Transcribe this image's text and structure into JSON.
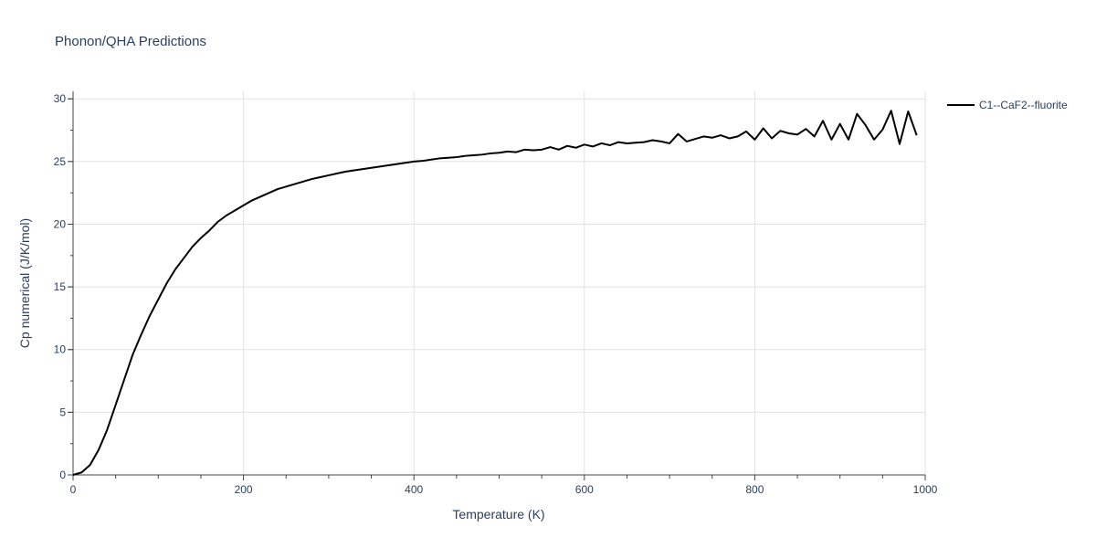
{
  "chart_data": {
    "type": "line",
    "title": "Phonon/QHA Predictions",
    "xlabel": "Temperature (K)",
    "ylabel": "Cp numerical (J/K/mol)",
    "xlim": [
      0,
      1000
    ],
    "ylim": [
      0,
      30.6
    ],
    "xticks": [
      0,
      200,
      400,
      600,
      800,
      1000
    ],
    "yticks": [
      0,
      5,
      10,
      15,
      20,
      25,
      30
    ],
    "xtick_labels": [
      "0",
      "200",
      "400",
      "600",
      "800",
      "1000"
    ],
    "ytick_labels": [
      "0",
      "5",
      "10",
      "15",
      "20",
      "25",
      "30"
    ],
    "grid": true,
    "legend_position": "top-right",
    "series": [
      {
        "name": "C1--CaF2--fluorite",
        "color": "#000000",
        "x": [
          0,
          10,
          20,
          30,
          40,
          50,
          60,
          70,
          80,
          90,
          100,
          110,
          120,
          130,
          140,
          150,
          160,
          170,
          180,
          190,
          200,
          210,
          220,
          230,
          240,
          250,
          260,
          270,
          280,
          290,
          300,
          310,
          320,
          330,
          340,
          350,
          360,
          370,
          380,
          390,
          400,
          410,
          420,
          430,
          440,
          450,
          460,
          470,
          480,
          490,
          500,
          510,
          520,
          530,
          540,
          550,
          560,
          570,
          580,
          590,
          600,
          610,
          620,
          630,
          640,
          650,
          660,
          670,
          680,
          690,
          700,
          710,
          720,
          730,
          740,
          750,
          760,
          770,
          780,
          790,
          800,
          810,
          820,
          830,
          840,
          850,
          860,
          870,
          880,
          890,
          900,
          910,
          920,
          930,
          940,
          950,
          960,
          970,
          980,
          990
        ],
        "y": [
          0,
          0.2,
          0.8,
          2.0,
          3.6,
          5.6,
          7.6,
          9.6,
          11.2,
          12.7,
          14.0,
          15.3,
          16.4,
          17.3,
          18.2,
          18.9,
          19.5,
          20.2,
          20.7,
          21.1,
          21.5,
          21.9,
          22.2,
          22.5,
          22.8,
          23.0,
          23.2,
          23.4,
          23.6,
          23.75,
          23.9,
          24.05,
          24.2,
          24.3,
          24.4,
          24.5,
          24.6,
          24.7,
          24.8,
          24.9,
          25.0,
          25.05,
          25.15,
          25.25,
          25.3,
          25.35,
          25.45,
          25.5,
          25.55,
          25.65,
          25.7,
          25.8,
          25.75,
          25.95,
          25.9,
          25.95,
          26.15,
          25.95,
          26.25,
          26.1,
          26.35,
          26.2,
          26.45,
          26.3,
          26.55,
          26.45,
          26.5,
          26.55,
          26.7,
          26.6,
          26.45,
          27.2,
          26.6,
          26.8,
          27.0,
          26.9,
          27.1,
          26.85,
          27.0,
          27.4,
          26.75,
          27.65,
          26.85,
          27.45,
          27.25,
          27.15,
          27.6,
          27.0,
          28.25,
          26.75,
          28.0,
          26.75,
          28.8,
          27.9,
          26.75,
          27.55,
          29.05,
          26.4,
          29.0,
          27.1
        ]
      }
    ]
  }
}
